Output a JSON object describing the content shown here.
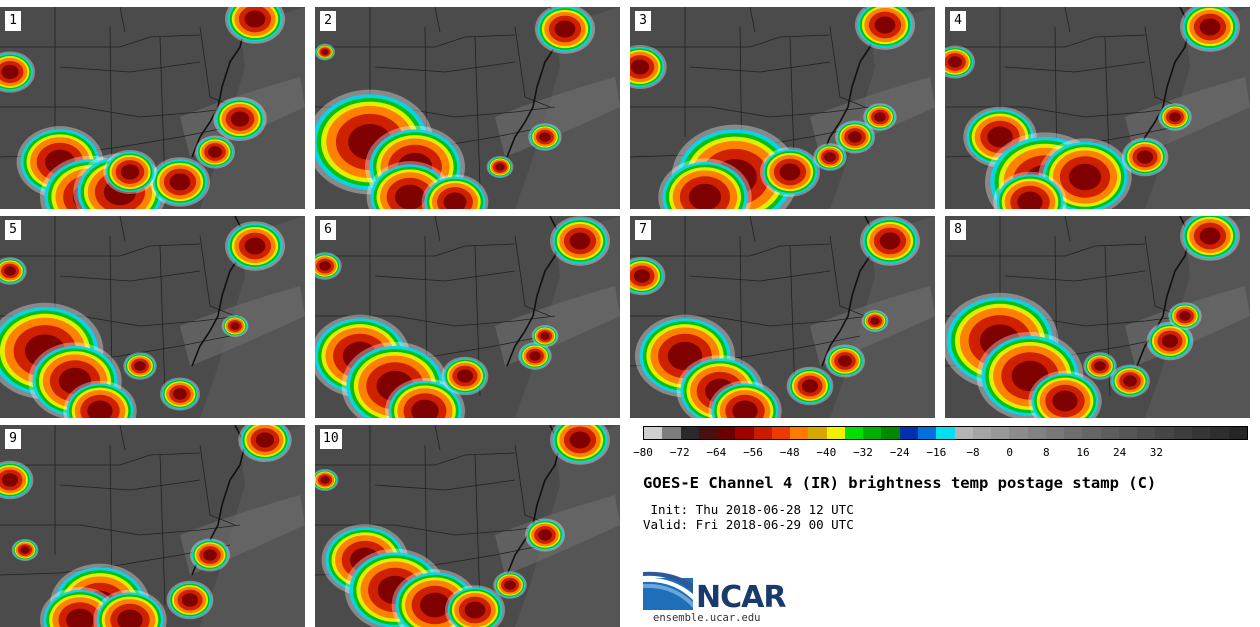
{
  "panels": [
    {
      "label": "1",
      "storms": [
        [
          60,
          155,
          26
        ],
        [
          90,
          190,
          30
        ],
        [
          120,
          185,
          28
        ],
        [
          180,
          175,
          18
        ],
        [
          240,
          112,
          16
        ],
        [
          255,
          12,
          18
        ],
        [
          10,
          65,
          15
        ],
        [
          215,
          145,
          12
        ],
        [
          130,
          165,
          16
        ]
      ]
    },
    {
      "label": "2",
      "storms": [
        [
          55,
          135,
          38
        ],
        [
          100,
          160,
          30
        ],
        [
          95,
          190,
          26
        ],
        [
          140,
          195,
          20
        ],
        [
          250,
          22,
          18
        ],
        [
          230,
          130,
          10
        ],
        [
          185,
          160,
          8
        ],
        [
          10,
          45,
          6
        ]
      ]
    },
    {
      "label": "3",
      "storms": [
        [
          105,
          170,
          38
        ],
        [
          75,
          190,
          28
        ],
        [
          160,
          165,
          18
        ],
        [
          200,
          150,
          10
        ],
        [
          255,
          18,
          18
        ],
        [
          10,
          60,
          16
        ],
        [
          225,
          130,
          12
        ],
        [
          250,
          110,
          10
        ]
      ]
    },
    {
      "label": "4",
      "storms": [
        [
          55,
          130,
          22
        ],
        [
          100,
          175,
          36
        ],
        [
          140,
          170,
          28
        ],
        [
          85,
          195,
          22
        ],
        [
          200,
          150,
          14
        ],
        [
          265,
          20,
          18
        ],
        [
          10,
          55,
          12
        ],
        [
          230,
          110,
          10
        ]
      ]
    },
    {
      "label": "5",
      "storms": [
        [
          45,
          135,
          35
        ],
        [
          75,
          165,
          28
        ],
        [
          100,
          195,
          22
        ],
        [
          180,
          178,
          12
        ],
        [
          255,
          30,
          18
        ],
        [
          10,
          55,
          10
        ],
        [
          235,
          110,
          8
        ],
        [
          140,
          150,
          10
        ]
      ]
    },
    {
      "label": "6",
      "storms": [
        [
          45,
          140,
          30
        ],
        [
          80,
          170,
          32
        ],
        [
          110,
          195,
          24
        ],
        [
          150,
          160,
          14
        ],
        [
          220,
          140,
          10
        ],
        [
          265,
          25,
          18
        ],
        [
          10,
          50,
          10
        ],
        [
          230,
          120,
          8
        ]
      ]
    },
    {
      "label": "7",
      "storms": [
        [
          55,
          140,
          30
        ],
        [
          90,
          175,
          26
        ],
        [
          115,
          195,
          22
        ],
        [
          180,
          170,
          14
        ],
        [
          215,
          145,
          12
        ],
        [
          260,
          25,
          18
        ],
        [
          12,
          60,
          14
        ],
        [
          245,
          105,
          8
        ]
      ]
    },
    {
      "label": "8",
      "storms": [
        [
          55,
          125,
          35
        ],
        [
          85,
          160,
          32
        ],
        [
          120,
          185,
          22
        ],
        [
          185,
          165,
          12
        ],
        [
          225,
          125,
          14
        ],
        [
          265,
          20,
          18
        ],
        [
          240,
          100,
          10
        ],
        [
          155,
          150,
          10
        ]
      ]
    },
    {
      "label": "9",
      "storms": [
        [
          100,
          180,
          30
        ],
        [
          80,
          195,
          24
        ],
        [
          130,
          195,
          22
        ],
        [
          190,
          175,
          14
        ],
        [
          210,
          130,
          12
        ],
        [
          265,
          15,
          16
        ],
        [
          10,
          55,
          14
        ],
        [
          25,
          125,
          8
        ]
      ]
    },
    {
      "label": "10",
      "storms": [
        [
          50,
          135,
          26
        ],
        [
          80,
          165,
          30
        ],
        [
          120,
          180,
          26
        ],
        [
          160,
          185,
          18
        ],
        [
          230,
          110,
          12
        ],
        [
          265,
          15,
          18
        ],
        [
          10,
          55,
          8
        ],
        [
          195,
          160,
          10
        ]
      ]
    }
  ],
  "colorbar": {
    "colors": [
      "#cfcfcf",
      "#7d7d7d",
      "#2a2a2a",
      "#4a1010",
      "#6a0000",
      "#a00000",
      "#cc1a00",
      "#ee3a00",
      "#ff7a00",
      "#d4a800",
      "#f0f000",
      "#00e000",
      "#00b000",
      "#008a00",
      "#0030b0",
      "#0070e0",
      "#00e0f0",
      "#b4b4b4",
      "#a4a4a4",
      "#989898",
      "#8c8c8c",
      "#828282",
      "#787878",
      "#6e6e6e",
      "#666666",
      "#5e5e5e",
      "#565656",
      "#4e4e4e",
      "#464646",
      "#3e3e3e",
      "#363636",
      "#2e2e2e",
      "#262626"
    ],
    "ticks": [
      "−80",
      "−72",
      "−64",
      "−56",
      "−48",
      "−40",
      "−32",
      "−24",
      "−16",
      "−8",
      "0",
      "8",
      "16",
      "24",
      "32"
    ]
  },
  "title": "GOES-E Channel 4 (IR) brightness temp postage stamp (C)",
  "init": " Init: Thu 2018-06-28 12 UTC",
  "valid": "Valid: Fri 2018-06-29 00 UTC",
  "logo_text": "NCAR",
  "site": "ensemble.ucar.edu"
}
